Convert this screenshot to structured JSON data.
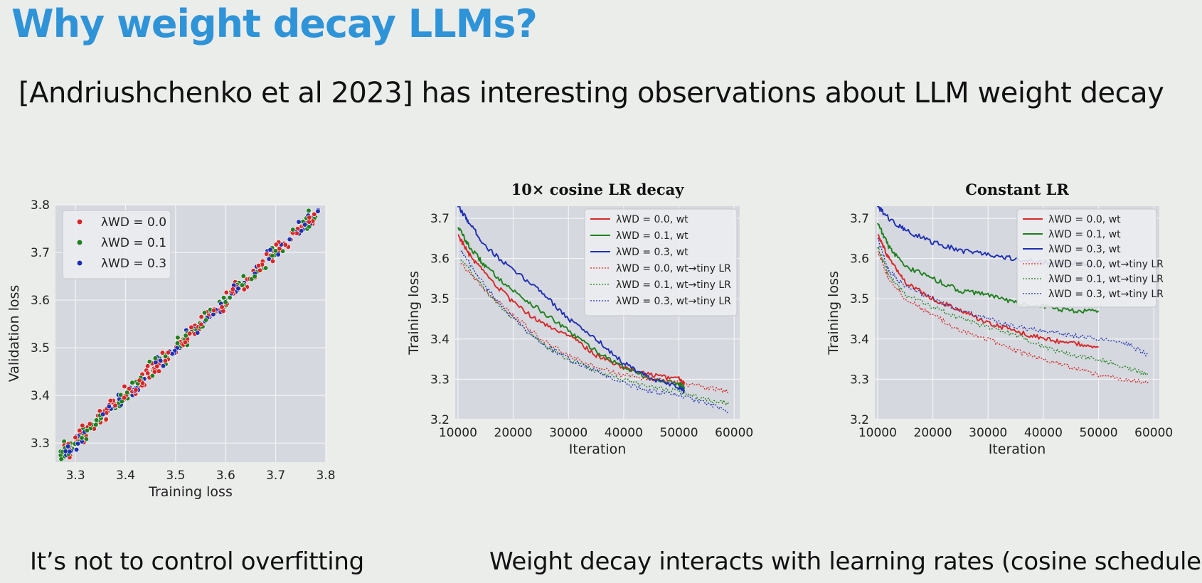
{
  "slide": {
    "title": "Why weight decay LLMs?",
    "subtitle": "[Andriushchenko et al 2023] has interesting observations about LLM weight decay",
    "caption_left": "It’s not  to control overfitting",
    "caption_right": "Weight decay interacts with learning rates (cosine schedule)"
  },
  "colors": {
    "red": "#d62728",
    "green": "#1f7f1f",
    "blue": "#1f2fb4",
    "plot_bg": "#d5d8de",
    "grid": "#f4f4f6"
  },
  "chart_data": [
    {
      "type": "scatter",
      "title": "",
      "xlabel": "Training loss",
      "ylabel": "Validation loss",
      "xlim": [
        3.26,
        3.8
      ],
      "ylim": [
        3.26,
        3.8
      ],
      "xticks": [
        "3.3",
        "3.4",
        "3.5",
        "3.6",
        "3.7",
        "3.8"
      ],
      "yticks": [
        "3.3",
        "3.4",
        "3.5",
        "3.6",
        "3.7",
        "3.8"
      ],
      "legend_position": "top-left",
      "grid": true,
      "series": [
        {
          "name": "λWD = 0.0",
          "color": "red",
          "x_range": [
            3.27,
            3.78
          ],
          "count": 170,
          "slope": 1.0,
          "noise": 0.016
        },
        {
          "name": "λWD = 0.1",
          "color": "green",
          "x_range": [
            3.27,
            3.78
          ],
          "count": 120,
          "slope": 1.0,
          "noise": 0.016
        },
        {
          "name": "λWD = 0.3",
          "color": "blue",
          "x_range": [
            3.28,
            3.79
          ],
          "count": 90,
          "slope": 1.0,
          "noise": 0.015
        }
      ]
    },
    {
      "type": "line",
      "title": "10× cosine LR decay",
      "xlabel": "Iteration",
      "ylabel": "Training loss",
      "xlim": [
        9500,
        61000
      ],
      "ylim": [
        3.2,
        3.73
      ],
      "xticks": [
        "10000",
        "20000",
        "30000",
        "40000",
        "50000",
        "60000"
      ],
      "yticks": [
        "3.2",
        "3.3",
        "3.4",
        "3.5",
        "3.6",
        "3.7"
      ],
      "legend_position": "top-right",
      "grid": true,
      "series": [
        {
          "name": "λWD = 0.0, wt",
          "color": "red",
          "style": "solid",
          "x": [
            10000,
            12000,
            15000,
            20000,
            25000,
            30000,
            35000,
            40000,
            45000,
            50000,
            51000
          ],
          "y": [
            3.66,
            3.61,
            3.56,
            3.49,
            3.44,
            3.41,
            3.36,
            3.33,
            3.31,
            3.3,
            3.29
          ]
        },
        {
          "name": "λWD = 0.1, wt",
          "color": "green",
          "style": "solid",
          "x": [
            10000,
            12000,
            15000,
            20000,
            25000,
            30000,
            35000,
            40000,
            45000,
            50000,
            51000
          ],
          "y": [
            3.68,
            3.63,
            3.58,
            3.52,
            3.47,
            3.42,
            3.37,
            3.33,
            3.3,
            3.29,
            3.28
          ]
        },
        {
          "name": "λWD = 0.3, wt",
          "color": "blue",
          "style": "solid",
          "x": [
            10000,
            12000,
            15000,
            20000,
            25000,
            30000,
            35000,
            40000,
            45000,
            50000,
            51000
          ],
          "y": [
            3.73,
            3.69,
            3.63,
            3.57,
            3.52,
            3.45,
            3.4,
            3.34,
            3.3,
            3.28,
            3.27
          ]
        },
        {
          "name": "λWD = 0.0, wt→tiny LR",
          "color": "red",
          "style": "dotted",
          "x": [
            10500,
            15000,
            20000,
            25000,
            30000,
            35000,
            40000,
            45000,
            50000,
            55000,
            59000
          ],
          "y": [
            3.59,
            3.52,
            3.46,
            3.4,
            3.36,
            3.33,
            3.31,
            3.3,
            3.29,
            3.28,
            3.27
          ]
        },
        {
          "name": "λWD = 0.1, wt→tiny LR",
          "color": "green",
          "style": "dotted",
          "x": [
            10500,
            15000,
            20000,
            25000,
            30000,
            35000,
            40000,
            45000,
            50000,
            55000,
            59000
          ],
          "y": [
            3.6,
            3.52,
            3.45,
            3.39,
            3.35,
            3.32,
            3.3,
            3.28,
            3.27,
            3.25,
            3.24
          ]
        },
        {
          "name": "λWD = 0.3, wt→tiny LR",
          "color": "blue",
          "style": "dotted",
          "x": [
            10500,
            15000,
            20000,
            25000,
            30000,
            35000,
            40000,
            45000,
            50000,
            55000,
            59000
          ],
          "y": [
            3.62,
            3.53,
            3.45,
            3.39,
            3.35,
            3.32,
            3.29,
            3.27,
            3.26,
            3.24,
            3.22
          ]
        }
      ]
    },
    {
      "type": "line",
      "title": "Constant LR",
      "xlabel": "Iteration",
      "ylabel": "Training loss",
      "xlim": [
        9500,
        61000
      ],
      "ylim": [
        3.2,
        3.73
      ],
      "xticks": [
        "10000",
        "20000",
        "30000",
        "40000",
        "50000",
        "60000"
      ],
      "yticks": [
        "3.2",
        "3.3",
        "3.4",
        "3.5",
        "3.6",
        "3.7"
      ],
      "legend_position": "top-right",
      "grid": true,
      "series": [
        {
          "name": "λWD = 0.0, wt",
          "color": "red",
          "style": "solid",
          "x": [
            10000,
            12000,
            15000,
            20000,
            25000,
            30000,
            35000,
            40000,
            45000,
            50000
          ],
          "y": [
            3.66,
            3.6,
            3.54,
            3.5,
            3.47,
            3.44,
            3.42,
            3.4,
            3.39,
            3.38
          ]
        },
        {
          "name": "λWD = 0.1, wt",
          "color": "green",
          "style": "solid",
          "x": [
            10000,
            12000,
            15000,
            20000,
            25000,
            30000,
            35000,
            40000,
            45000,
            50000
          ],
          "y": [
            3.69,
            3.63,
            3.58,
            3.55,
            3.52,
            3.51,
            3.49,
            3.48,
            3.47,
            3.47
          ]
        },
        {
          "name": "λWD = 0.3, wt",
          "color": "blue",
          "style": "solid",
          "x": [
            10000,
            12000,
            15000,
            20000,
            25000,
            30000,
            35000,
            40000,
            45000,
            50000
          ],
          "y": [
            3.73,
            3.7,
            3.67,
            3.64,
            3.62,
            3.61,
            3.6,
            3.59,
            3.59,
            3.58
          ]
        },
        {
          "name": "λWD = 0.0, wt→tiny LR",
          "color": "red",
          "style": "dotted",
          "x": [
            10000,
            12000,
            15000,
            20000,
            25000,
            30000,
            35000,
            40000,
            45000,
            50000,
            55000,
            59000
          ],
          "y": [
            3.62,
            3.55,
            3.5,
            3.46,
            3.42,
            3.4,
            3.37,
            3.35,
            3.33,
            3.31,
            3.3,
            3.29
          ]
        },
        {
          "name": "λWD = 0.1, wt→tiny LR",
          "color": "green",
          "style": "dotted",
          "x": [
            10000,
            12000,
            15000,
            20000,
            25000,
            30000,
            35000,
            40000,
            45000,
            50000,
            55000,
            59000
          ],
          "y": [
            3.63,
            3.56,
            3.51,
            3.48,
            3.45,
            3.43,
            3.41,
            3.38,
            3.36,
            3.35,
            3.33,
            3.31
          ]
        },
        {
          "name": "λWD = 0.3, wt→tiny LR",
          "color": "blue",
          "style": "dotted",
          "x": [
            10000,
            12000,
            15000,
            20000,
            25000,
            30000,
            35000,
            40000,
            45000,
            50000,
            55000,
            59000
          ],
          "y": [
            3.65,
            3.57,
            3.53,
            3.5,
            3.47,
            3.45,
            3.43,
            3.42,
            3.41,
            3.4,
            3.39,
            3.36
          ]
        }
      ]
    }
  ]
}
